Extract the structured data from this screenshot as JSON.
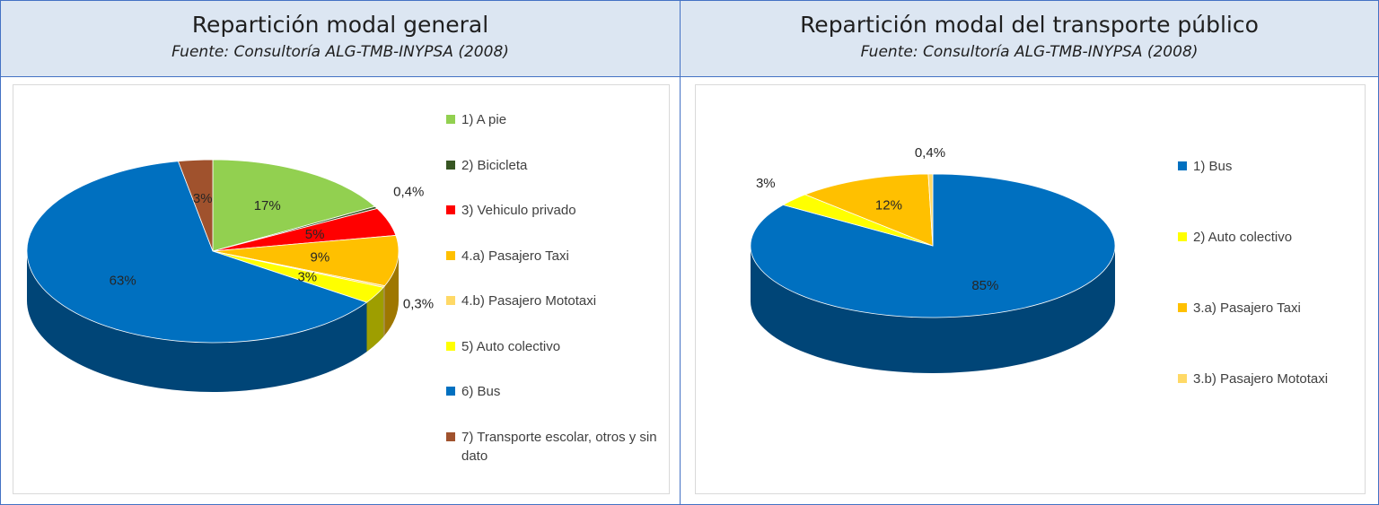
{
  "left_panel": {
    "title": "Repartición modal general",
    "source": "Fuente: Consultoría ALG-TMB-INYPSA (2008)"
  },
  "right_panel": {
    "title": "Repartición modal del transporte público",
    "source": "Fuente: Consultoría ALG-TMB-INYPSA (2008)"
  },
  "chart_data": [
    {
      "type": "pie",
      "title": "Repartición modal general",
      "labels": [
        "1) A pie",
        "2) Bicicleta",
        "3) Vehiculo privado",
        "4.a) Pasajero Taxi",
        "4.b) Pasajero Mototaxi",
        "5) Auto colectivo",
        "6) Bus",
        "7) Transporte escolar, otros y sin dato"
      ],
      "values": [
        17,
        0.4,
        5,
        9,
        0.3,
        3,
        63,
        3
      ],
      "data_labels": [
        "17%",
        "0,4%",
        "5%",
        "9%",
        "0,3%",
        "3%",
        "63%",
        "3%"
      ],
      "colors": [
        "#92d050",
        "#375623",
        "#ff0000",
        "#ffc000",
        "#ffd966",
        "#ffff00",
        "#0070c0",
        "#a0522d"
      ],
      "legend_position": "right",
      "style": "3d"
    },
    {
      "type": "pie",
      "title": "Repartición modal del transporte público",
      "labels": [
        "1) Bus",
        "2) Auto colectivo",
        "3.a) Pasajero Taxi",
        "3.b) Pasajero Mototaxi"
      ],
      "values": [
        85,
        3,
        12,
        0.4
      ],
      "data_labels": [
        "85%",
        "3%",
        "12%",
        "0,4%"
      ],
      "colors": [
        "#0070c0",
        "#ffff00",
        "#ffc000",
        "#ffd966"
      ],
      "legend_position": "right",
      "style": "3d"
    }
  ]
}
